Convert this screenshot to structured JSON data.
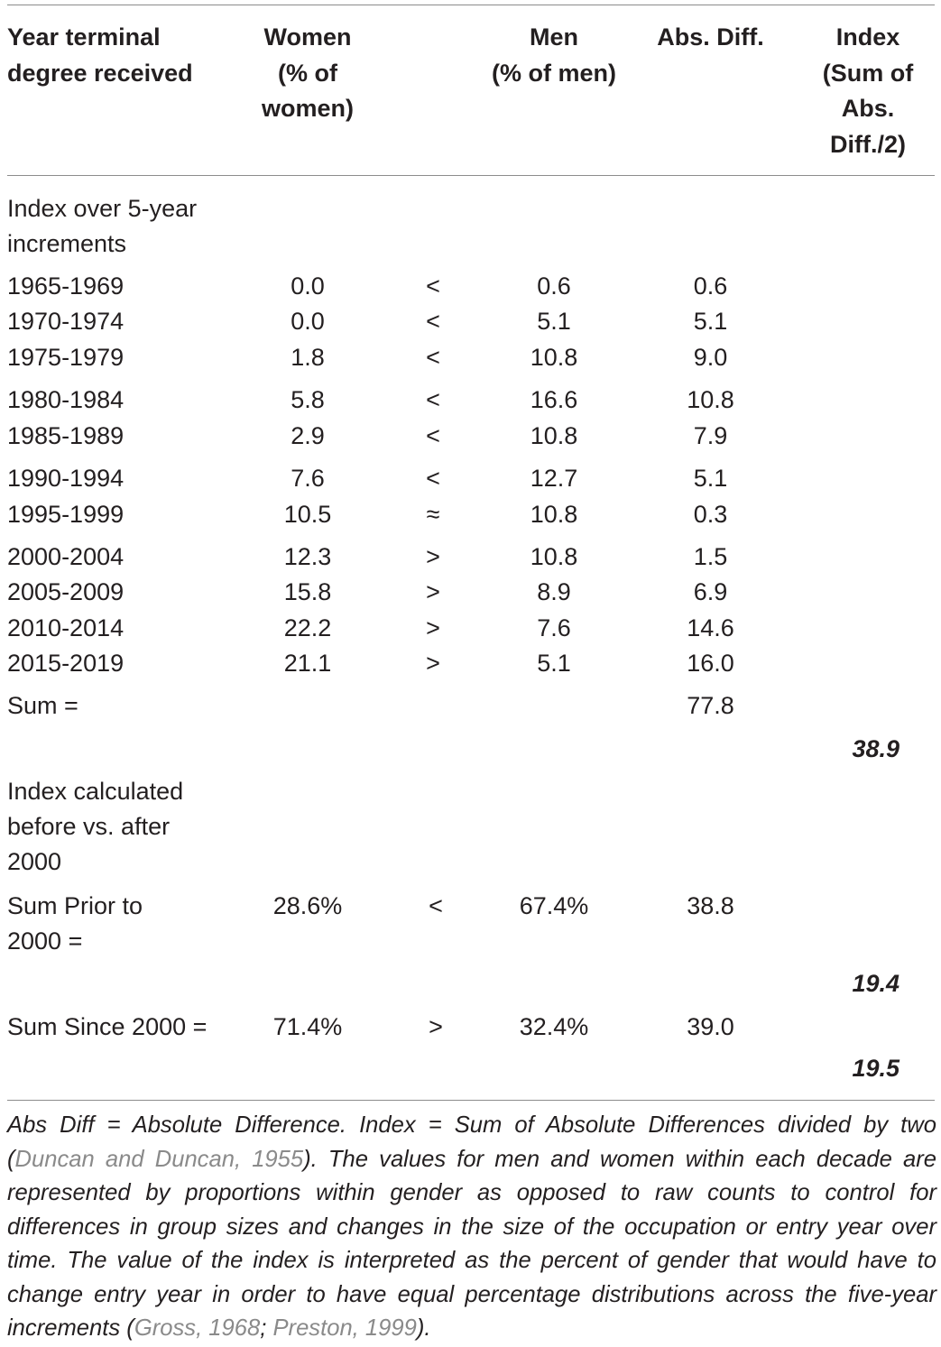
{
  "table": {
    "headers": {
      "year": [
        "Year terminal",
        "degree received"
      ],
      "women": [
        "Women",
        "(% of",
        "women)"
      ],
      "men": [
        "Men",
        "(% of men)"
      ],
      "abs": [
        "Abs. Diff."
      ],
      "index": [
        "Index",
        "(Sum of",
        "Abs.",
        "Diff./2)"
      ]
    },
    "section1_label": [
      "Index over 5-year",
      "increments"
    ],
    "rows": [
      {
        "year": "1965-1969",
        "women": "0.0",
        "cmp": "<",
        "men": "0.6",
        "abs": "0.6"
      },
      {
        "year": "1970-1974",
        "women": "0.0",
        "cmp": "<",
        "men": "5.1",
        "abs": "5.1"
      },
      {
        "year": "1975-1979",
        "women": "1.8",
        "cmp": "<",
        "men": "10.8",
        "abs": "9.0"
      },
      {
        "year": "1980-1984",
        "women": "5.8",
        "cmp": "<",
        "men": "16.6",
        "abs": "10.8"
      },
      {
        "year": "1985-1989",
        "women": "2.9",
        "cmp": "<",
        "men": "10.8",
        "abs": "7.9"
      },
      {
        "year": "1990-1994",
        "women": "7.6",
        "cmp": "<",
        "men": "12.7",
        "abs": "5.1"
      },
      {
        "year": "1995-1999",
        "women": "10.5",
        "cmp": "≈",
        "men": "10.8",
        "abs": "0.3"
      },
      {
        "year": "2000-2004",
        "women": "12.3",
        "cmp": ">",
        "men": "10.8",
        "abs": "1.5"
      },
      {
        "year": "2005-2009",
        "women": "15.8",
        "cmp": ">",
        "men": "8.9",
        "abs": "6.9"
      },
      {
        "year": "2010-2014",
        "women": "22.2",
        "cmp": ">",
        "men": "7.6",
        "abs": "14.6"
      },
      {
        "year": "2015-2019",
        "women": "21.1",
        "cmp": ">",
        "men": "5.1",
        "abs": "16.0"
      }
    ],
    "sum_label": "Sum =",
    "sum_abs": "77.8",
    "index_total": "38.9",
    "section2_label": [
      "Index calculated",
      "before vs. after",
      "2000"
    ],
    "prior": {
      "label": [
        "Sum Prior to",
        "2000 ="
      ],
      "women": "28.6%",
      "cmp": "<",
      "men": "67.4%",
      "abs": "38.8",
      "index": "19.4"
    },
    "since": {
      "label": "Sum Since 2000 =",
      "women": "71.4%",
      "cmp": ">",
      "men": "32.4%",
      "abs": "39.0",
      "index": "19.5"
    }
  },
  "footnote": {
    "part1": "Abs Diff = Absolute Difference. Index = Sum of Absolute Differences divided by two (",
    "cite1": "Duncan and Duncan, 1955",
    "part2": "). The values for men and women within each decade are represented by proportions within gender as opposed to raw counts to control for differences in group sizes and changes in the size of the occupation or entry year over time. The value of the index is interpreted as the percent of gender that would have to change entry year in order to have equal percentage distributions across the five-year increments (",
    "cite2": "Gross, 1968",
    "sep": "; ",
    "cite3": "Preston, 1999",
    "part3": ")."
  }
}
